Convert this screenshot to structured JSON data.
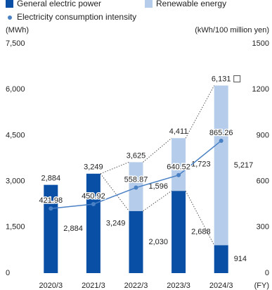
{
  "chart_data": {
    "type": "bar",
    "categories": [
      "2020/3",
      "2021/3",
      "2022/3",
      "2023/3",
      "2024/3"
    ],
    "series": [
      {
        "name": "General electric power",
        "color": "#0a4fa6",
        "values": [
          2884,
          3249,
          2030,
          2688,
          914
        ],
        "value_labels": [
          "2,884",
          "3,249",
          "2,030",
          "2,688",
          "914"
        ]
      },
      {
        "name": "Renewable energy",
        "color": "#b5cdea",
        "values": [
          0,
          0,
          1596,
          1723,
          5217
        ],
        "value_labels": [
          null,
          null,
          "1,596",
          "1,723",
          "5,217"
        ]
      },
      {
        "name": "Electricity consumption intensity",
        "color": "#4a80c4",
        "type": "line",
        "axis": "y2",
        "values": [
          421.98,
          450.92,
          558.87,
          640.52,
          865.26
        ]
      }
    ],
    "totals": [
      2884,
      3249,
      3625,
      4411,
      6131
    ],
    "total_labels": [
      "2,884",
      "3,249",
      "3,625",
      "4,411",
      "6,131"
    ],
    "y_label": "(MWh)",
    "y2_label": "(kWh/100 million yen)",
    "x_label": "(FY)",
    "ylim": [
      0,
      7500
    ],
    "yticks": [
      0,
      {
        "value": 1500,
        "label": "1,500"
      },
      {
        "value": 3000,
        "label": "3,000"
      },
      {
        "value": 4500,
        "label": "4,500"
      },
      {
        "value": 6000,
        "label": "6,000"
      },
      {
        "value": 7500,
        "label": "7,500"
      }
    ],
    "y2lim": [
      0,
      1500
    ],
    "y2ticks": [
      0,
      300,
      600,
      900,
      1200,
      1500
    ]
  }
}
